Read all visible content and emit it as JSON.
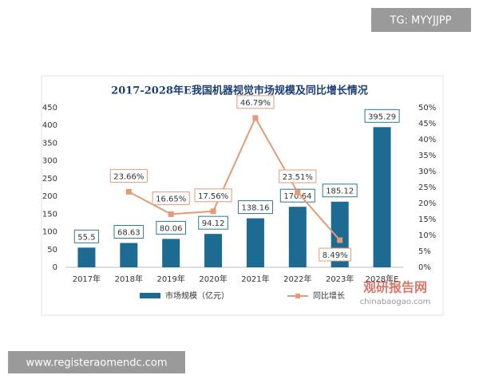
{
  "chart_data": {
    "type": "bar-line",
    "title": "2017-2028年E我国机器视觉市场规模及同比增长情况",
    "categories": [
      "2017年",
      "2018年",
      "2019年",
      "2020年",
      "2021年",
      "2022年",
      "2023年",
      "2028年E"
    ],
    "series": [
      {
        "name": "市场规模（亿元）",
        "type": "bar",
        "color": "#1d6a93",
        "values": [
          55.5,
          68.63,
          80.06,
          94.12,
          138.16,
          170.64,
          185.12,
          395.29
        ]
      },
      {
        "name": "同比增长",
        "type": "line",
        "axis": "y2",
        "color": "#e39a76",
        "values": [
          null,
          23.66,
          16.65,
          17.56,
          46.79,
          23.51,
          8.49,
          null
        ],
        "value_labels": [
          null,
          "23.66%",
          "16.65%",
          "17.56%",
          "46.79%",
          "23.51%",
          "8.49%",
          null
        ]
      }
    ],
    "ylim": [
      0,
      450
    ],
    "yticks": [
      0,
      50,
      100,
      150,
      200,
      250,
      300,
      350,
      400,
      450
    ],
    "y2lim": [
      0,
      50
    ],
    "y2ticks": [
      {
        "value": 0,
        "label": "0%"
      },
      {
        "value": 5,
        "label": "5%"
      },
      {
        "value": 10,
        "label": "10%"
      },
      {
        "value": 15,
        "label": "15%"
      },
      {
        "value": 20,
        "label": "20%"
      },
      {
        "value": 25,
        "label": "25%"
      },
      {
        "value": 30,
        "label": "30%"
      },
      {
        "value": 35,
        "label": "35%"
      },
      {
        "value": 40,
        "label": "40%"
      },
      {
        "value": 45,
        "label": "45%"
      },
      {
        "value": 50,
        "label": "50%"
      }
    ],
    "grid": false,
    "legend": "bottom"
  },
  "watermarks": {
    "top": "TG: MYYJJPP",
    "bottom": "www.registeraomendc.com",
    "logo": "观研报告网",
    "logo_url": "chinabaogao.com"
  }
}
